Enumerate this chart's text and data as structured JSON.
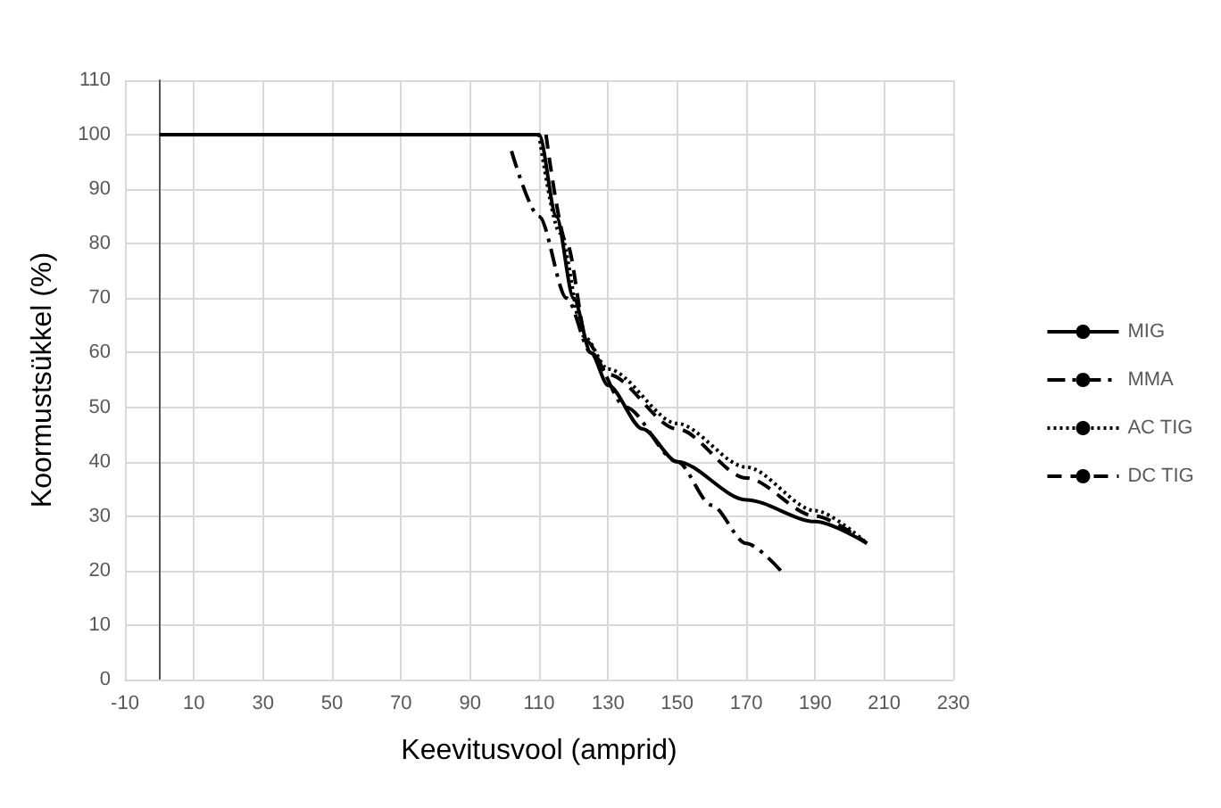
{
  "chart_data": {
    "type": "line",
    "xlabel": "Keevitusvool (amprid)",
    "ylabel": "Koormustsükkel (%)",
    "xlim": [
      -10,
      230
    ],
    "xticks": [
      -10,
      10,
      30,
      50,
      70,
      90,
      110,
      130,
      150,
      170,
      190,
      210,
      230
    ],
    "ylim": [
      0,
      110
    ],
    "yticks": [
      0,
      10,
      20,
      30,
      40,
      50,
      60,
      70,
      80,
      90,
      100,
      110
    ],
    "grid": true,
    "legend": "right",
    "marker": "none",
    "series": [
      {
        "name": "MIG",
        "color": "#000000",
        "line_style": "solid",
        "x": [
          0,
          110,
          115,
          120,
          125,
          130,
          140,
          150,
          170,
          190,
          205
        ],
        "values": [
          100,
          100,
          85,
          70,
          60,
          54,
          46,
          40,
          33,
          29,
          25
        ]
      },
      {
        "name": "MMA",
        "color": "#000000",
        "line_style": "dashdot",
        "x": [
          102,
          110,
          118,
          125,
          135,
          150,
          160,
          170,
          180
        ],
        "values": [
          97,
          85,
          70,
          60,
          50,
          40,
          32,
          25,
          20
        ]
      },
      {
        "name": "AC TIG",
        "color": "#000000",
        "line_style": "dotted",
        "x": [
          110,
          116,
          123,
          130,
          150,
          170,
          190,
          205
        ],
        "values": [
          100,
          82,
          63,
          57,
          47,
          39,
          31,
          25
        ]
      },
      {
        "name": "DC TIG",
        "color": "#000000",
        "line_style": "dashed",
        "x": [
          112,
          118,
          124,
          130,
          150,
          170,
          190,
          205
        ],
        "values": [
          100,
          80,
          62,
          56,
          46,
          37,
          30,
          25
        ]
      }
    ]
  }
}
